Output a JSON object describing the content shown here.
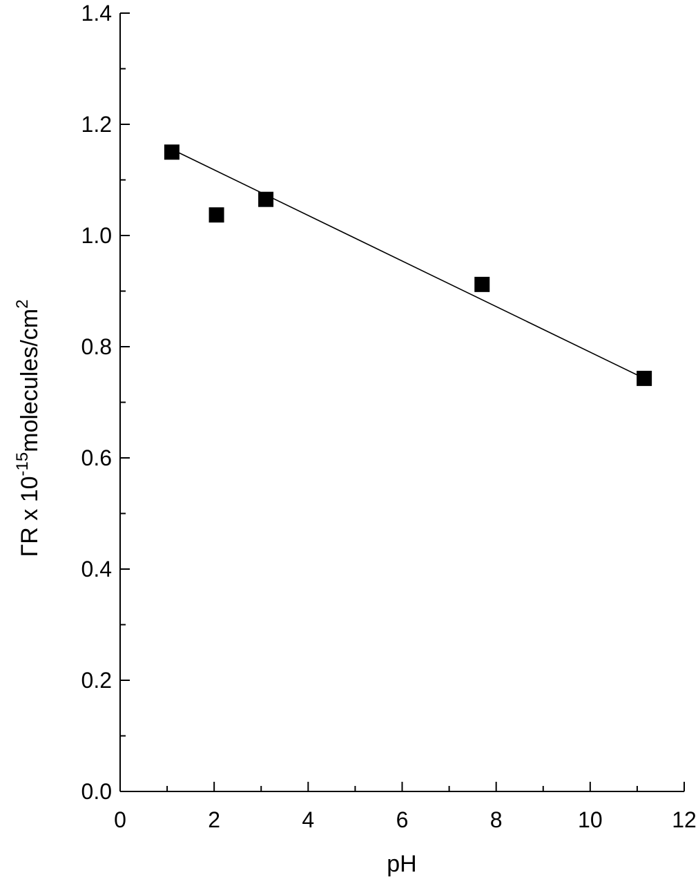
{
  "colors": {
    "background": "#ffffff",
    "axis": "#000000",
    "marker": "#000000",
    "fit_line": "#000000"
  },
  "chart_data": {
    "type": "scatter",
    "title": "",
    "xlabel": "pH",
    "ylabel": {
      "prefix": "ΓR x 10",
      "exponent": "-15",
      "units": "molecules/cm",
      "units_exponent": "2"
    },
    "xlim": [
      0,
      12
    ],
    "ylim": [
      0.0,
      1.4
    ],
    "x_ticks": [
      0,
      2,
      4,
      6,
      8,
      10,
      12
    ],
    "x_tick_labels": [
      "0",
      "2",
      "4",
      "6",
      "8",
      "10",
      "12"
    ],
    "x_minor_step": 1,
    "y_ticks": [
      0.0,
      0.2,
      0.4,
      0.6,
      0.8,
      1.0,
      1.2,
      1.4
    ],
    "y_tick_labels": [
      "0.0",
      "0.2",
      "0.4",
      "0.6",
      "0.8",
      "1.0",
      "1.2",
      "1.4"
    ],
    "y_minor_step": 0.1,
    "grid": false,
    "series": [
      {
        "marker": "square",
        "x": [
          1.1,
          2.05,
          3.1,
          7.7,
          11.15
        ],
        "y": [
          1.15,
          1.037,
          1.065,
          0.912,
          0.743
        ]
      }
    ],
    "fit_line": {
      "x": [
        1.1,
        11.15
      ],
      "y": [
        1.155,
        0.743
      ]
    }
  }
}
